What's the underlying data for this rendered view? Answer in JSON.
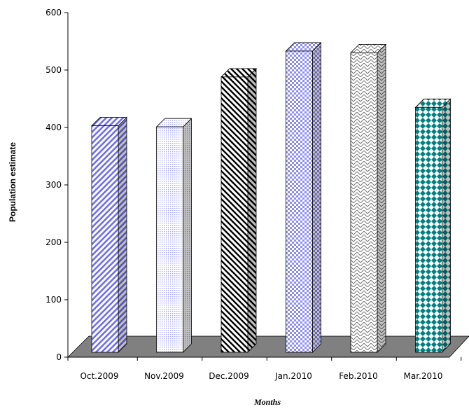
{
  "chart_data": {
    "type": "bar",
    "title": "",
    "xlabel": "Months",
    "ylabel": "Population estimate",
    "categories": [
      "Oct.2009",
      "Nov.2009",
      "Dec.2009",
      "Jan.2010",
      "Feb.2010",
      "Mar.2010"
    ],
    "values": [
      403,
      401,
      488,
      533,
      530,
      435
    ],
    "ylim": [
      0,
      600
    ],
    "yticks": [
      "0",
      "100",
      "200",
      "300",
      "400",
      "500",
      "600"
    ],
    "grid": false,
    "legend": "none",
    "style": "3d-column",
    "colors": {
      "floor": "#808080",
      "axis": "#000000",
      "bars": [
        "#7b7bf0",
        "#b8b8f8",
        "#000000",
        "#8c8cf4",
        "#8a8a8a",
        "#008080"
      ]
    }
  }
}
